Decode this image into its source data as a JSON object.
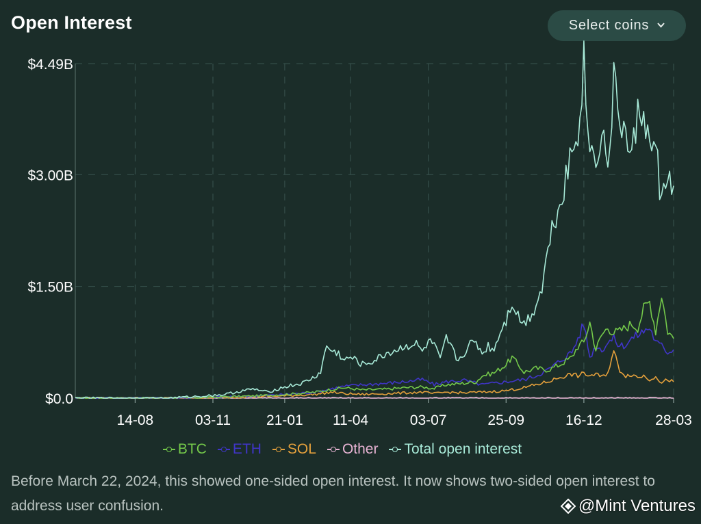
{
  "header": {
    "title": "Open Interest",
    "select_label": "Select coins",
    "select_icon": "chevron-down-icon"
  },
  "note": "Before March 22, 2024, this showed one-sided open interest. It now shows two-sided open interest to address user confusion.",
  "watermark": "@Mint Ventures",
  "chart_data": {
    "type": "line",
    "title": "Open Interest",
    "xlabel": "",
    "ylabel": "",
    "y_ticks": [
      "$4.49B",
      "$3.00B",
      "$1.50B",
      "$0.0"
    ],
    "x_ticks": [
      "14-08",
      "03-11",
      "21-01",
      "11-04",
      "03-07",
      "25-09",
      "16-12",
      "28-03"
    ],
    "ylim": [
      0,
      4.49
    ],
    "y_unit": "billion USD",
    "grid": true,
    "legend_position": "bottom",
    "x_index_range": [
      0,
      100
    ],
    "x_tick_index": [
      10,
      23,
      35,
      46,
      59,
      72,
      85,
      100
    ],
    "series": [
      {
        "name": "BTC",
        "color": "#74c94a",
        "x": [
          0,
          15,
          22,
          30,
          35,
          40,
          43,
          45,
          48,
          52,
          55,
          58,
          60,
          62,
          65,
          67,
          68,
          70,
          72,
          73,
          75,
          77,
          79,
          81,
          83,
          84,
          85,
          86,
          87,
          88,
          89,
          90,
          91,
          92,
          93,
          94,
          95,
          96,
          97,
          98,
          99,
          100
        ],
        "values": [
          0,
          0.0,
          0.01,
          0.03,
          0.05,
          0.08,
          0.12,
          0.14,
          0.11,
          0.12,
          0.14,
          0.15,
          0.13,
          0.18,
          0.2,
          0.22,
          0.3,
          0.34,
          0.45,
          0.55,
          0.35,
          0.4,
          0.38,
          0.45,
          0.55,
          0.7,
          0.75,
          1.02,
          0.65,
          0.85,
          0.95,
          0.88,
          0.9,
          0.95,
          1.0,
          0.95,
          1.2,
          1.3,
          0.9,
          1.4,
          0.9,
          0.8
        ]
      },
      {
        "name": "ETH",
        "color": "#4035c9",
        "x": [
          0,
          15,
          22,
          30,
          35,
          40,
          43,
          45,
          48,
          52,
          55,
          58,
          60,
          62,
          65,
          67,
          68,
          70,
          72,
          75,
          77,
          79,
          81,
          83,
          84,
          85,
          86,
          87,
          88,
          89,
          90,
          91,
          92,
          93,
          94,
          95,
          96,
          97,
          98,
          99,
          100
        ],
        "values": [
          0,
          0.0,
          0.01,
          0.03,
          0.05,
          0.08,
          0.13,
          0.16,
          0.18,
          0.2,
          0.22,
          0.25,
          0.18,
          0.22,
          0.24,
          0.2,
          0.18,
          0.2,
          0.22,
          0.25,
          0.3,
          0.38,
          0.5,
          0.62,
          0.8,
          1.0,
          0.55,
          0.7,
          0.65,
          0.75,
          0.8,
          0.7,
          0.72,
          0.8,
          0.85,
          0.9,
          0.95,
          0.75,
          0.7,
          0.62,
          0.65
        ]
      },
      {
        "name": "SOL",
        "color": "#e6a13c",
        "x": [
          0,
          15,
          22,
          30,
          35,
          40,
          43,
          45,
          48,
          52,
          55,
          58,
          60,
          62,
          65,
          67,
          68,
          70,
          72,
          75,
          77,
          79,
          81,
          83,
          84,
          85,
          86,
          87,
          88,
          89,
          90,
          91,
          92,
          93,
          94,
          95,
          96,
          97,
          98,
          99,
          100
        ],
        "values": [
          0,
          0.0,
          0.0,
          0.02,
          0.03,
          0.05,
          0.08,
          0.06,
          0.05,
          0.06,
          0.07,
          0.08,
          0.06,
          0.08,
          0.07,
          0.08,
          0.08,
          0.09,
          0.1,
          0.14,
          0.18,
          0.22,
          0.28,
          0.32,
          0.3,
          0.33,
          0.3,
          0.32,
          0.28,
          0.35,
          0.62,
          0.38,
          0.3,
          0.32,
          0.28,
          0.3,
          0.25,
          0.3,
          0.2,
          0.25,
          0.22
        ]
      },
      {
        "name": "Other",
        "color": "#e8b4d4",
        "x": [
          0,
          100
        ],
        "values": [
          0,
          0
        ]
      },
      {
        "name": "Total open interest",
        "color": "#a8ead8",
        "x": [
          0,
          15,
          20,
          25,
          28,
          30,
          32,
          35,
          38,
          40,
          41,
          42,
          43,
          44,
          45,
          46,
          48,
          50,
          52,
          54,
          55,
          57,
          58,
          59,
          60,
          61,
          62,
          63,
          64,
          66,
          67,
          68,
          69,
          70,
          71,
          72,
          73,
          74,
          75,
          76,
          77,
          78,
          79,
          80,
          81,
          82,
          83,
          84,
          85,
          86,
          87,
          88,
          89,
          90,
          91,
          92,
          93,
          94,
          95,
          96,
          97,
          98,
          99,
          100
        ],
        "values": [
          0,
          0.0,
          0.02,
          0.05,
          0.1,
          0.12,
          0.08,
          0.15,
          0.2,
          0.28,
          0.35,
          0.7,
          0.62,
          0.6,
          0.5,
          0.55,
          0.45,
          0.5,
          0.6,
          0.65,
          0.7,
          0.72,
          0.62,
          0.75,
          0.72,
          0.5,
          0.8,
          0.65,
          0.5,
          0.72,
          0.75,
          0.6,
          0.7,
          0.65,
          0.9,
          1.05,
          1.3,
          1.1,
          1.0,
          1.1,
          1.25,
          1.5,
          2.0,
          2.4,
          2.6,
          3.0,
          3.3,
          3.6,
          4.49,
          3.3,
          3.25,
          3.6,
          3.1,
          4.2,
          3.8,
          3.5,
          3.2,
          3.8,
          3.9,
          3.3,
          3.4,
          2.6,
          3.0,
          2.85
        ]
      }
    ]
  }
}
